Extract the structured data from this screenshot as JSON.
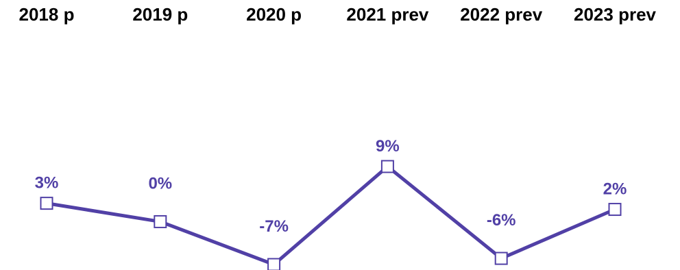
{
  "chart_data": {
    "type": "line",
    "categories": [
      "2018 p",
      "2019 p",
      "2020 p",
      "2021 prev",
      "2022 prev",
      "2023 prev"
    ],
    "values": [
      3,
      0,
      -7,
      9,
      -6,
      2
    ],
    "data_labels": [
      "3%",
      "0%",
      "-7%",
      "9%",
      "-6%",
      "2%"
    ],
    "title": "",
    "xlabel": "",
    "ylabel": "",
    "grid": false,
    "legend": "none",
    "marker": "hollow-square"
  },
  "colors": {
    "series": "#5140a6",
    "label": "#5140a6",
    "category_text": "#000000",
    "marker_fill": "#ffffff"
  }
}
